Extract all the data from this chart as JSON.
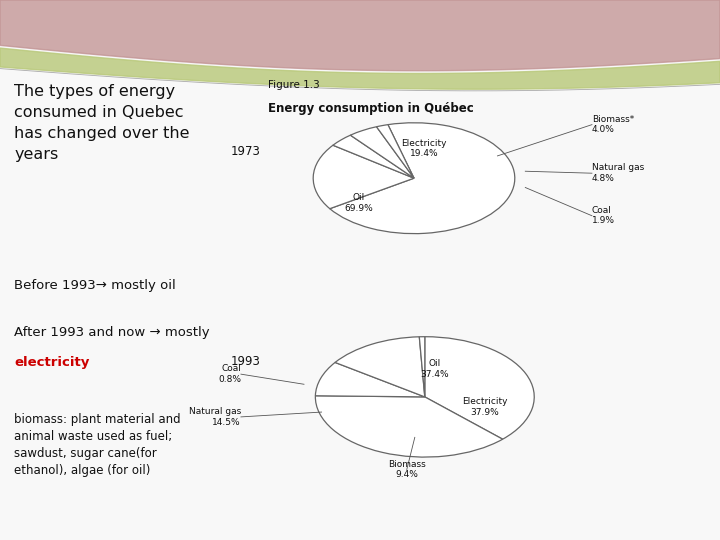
{
  "slide_bg": "#f8f8f8",
  "title_text": "The types of energy\nconsumed in Quebec\nhas changed over the\nyears",
  "before_text": "Before 1993→ mostly oil",
  "after_line1": "After 1993 and now → mostly",
  "after_bold": "electricity",
  "biomass_text": "biomass: plant material and\nanimal waste used as fuel;\nsawdust, sugar cane(for\nethanol), algae (for oil)",
  "fig_label": "Figure 1.3",
  "fig_title": "Energy consumption in Québec",
  "year1": "1973",
  "year2": "1993",
  "pie1_values": [
    69.9,
    19.4,
    4.0,
    4.8,
    1.9
  ],
  "pie2_values": [
    37.4,
    37.9,
    9.4,
    14.5,
    0.8
  ],
  "pie_edge_color": "#666666",
  "pie_face_color": "#ffffff",
  "text_color_black": "#111111",
  "text_color_red": "#cc0000",
  "pink_color": "#c09090",
  "green_color": "#b8c878"
}
